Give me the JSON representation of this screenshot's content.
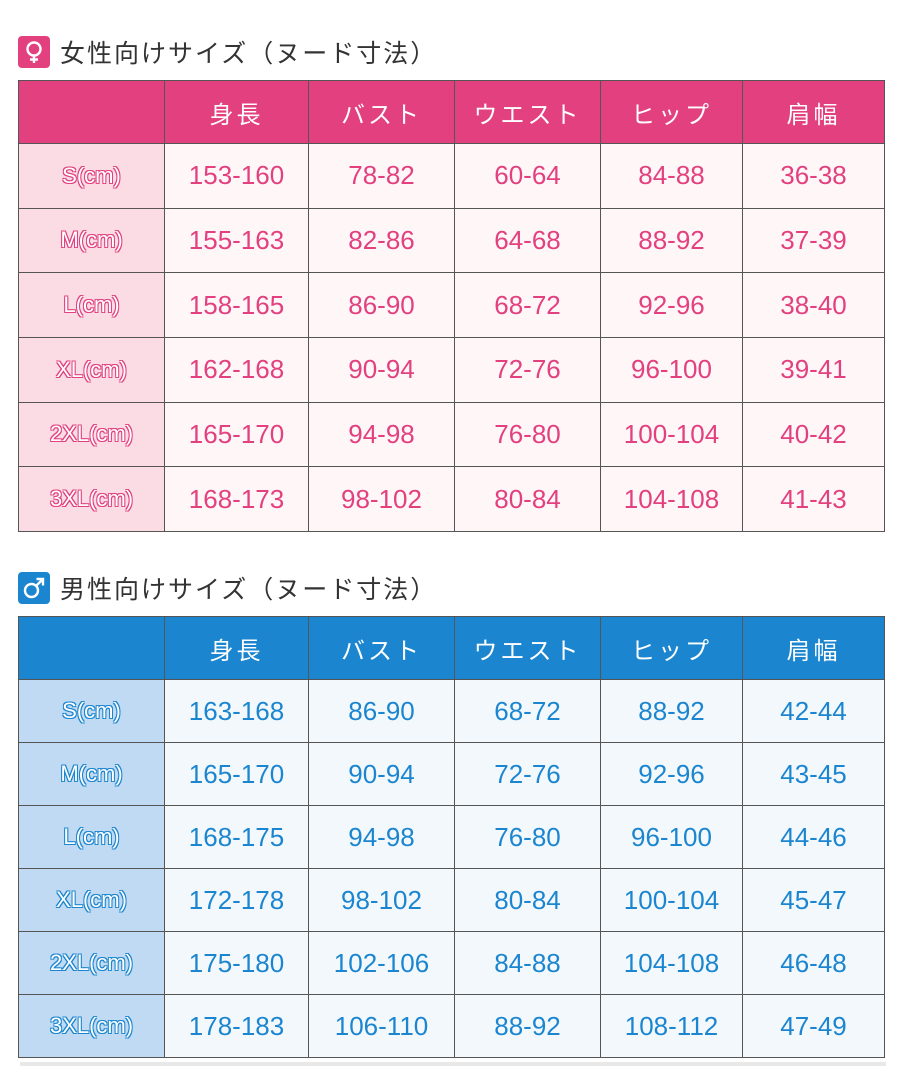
{
  "colors": {
    "women_accent": "#e2407e",
    "men_accent": "#1b86cf"
  },
  "women": {
    "icon": "female-symbol-icon",
    "title": "女性向けサイズ（ヌード寸法）",
    "headers": [
      "",
      "身長",
      "バスト",
      "ウエスト",
      "ヒップ",
      "肩幅"
    ],
    "rows": [
      {
        "size": "S(cm)",
        "values": [
          "153-160",
          "78-82",
          "60-64",
          "84-88",
          "36-38"
        ]
      },
      {
        "size": "M(cm)",
        "values": [
          "155-163",
          "82-86",
          "64-68",
          "88-92",
          "37-39"
        ]
      },
      {
        "size": "L(cm)",
        "values": [
          "158-165",
          "86-90",
          "68-72",
          "92-96",
          "38-40"
        ]
      },
      {
        "size": "XL(cm)",
        "values": [
          "162-168",
          "90-94",
          "72-76",
          "96-100",
          "39-41"
        ]
      },
      {
        "size": "2XL(cm)",
        "values": [
          "165-170",
          "94-98",
          "76-80",
          "100-104",
          "40-42"
        ]
      },
      {
        "size": "3XL(cm)",
        "values": [
          "168-173",
          "98-102",
          "80-84",
          "104-108",
          "41-43"
        ]
      }
    ]
  },
  "men": {
    "icon": "male-symbol-icon",
    "title": "男性向けサイズ（ヌード寸法）",
    "headers": [
      "",
      "身長",
      "バスト",
      "ウエスト",
      "ヒップ",
      "肩幅"
    ],
    "rows": [
      {
        "size": "S(cm)",
        "values": [
          "163-168",
          "86-90",
          "68-72",
          "88-92",
          "42-44"
        ]
      },
      {
        "size": "M(cm)",
        "values": [
          "165-170",
          "90-94",
          "72-76",
          "92-96",
          "43-45"
        ]
      },
      {
        "size": "L(cm)",
        "values": [
          "168-175",
          "94-98",
          "76-80",
          "96-100",
          "44-46"
        ]
      },
      {
        "size": "XL(cm)",
        "values": [
          "172-178",
          "98-102",
          "80-84",
          "100-104",
          "45-47"
        ]
      },
      {
        "size": "2XL(cm)",
        "values": [
          "175-180",
          "102-106",
          "84-88",
          "104-108",
          "46-48"
        ]
      },
      {
        "size": "3XL(cm)",
        "values": [
          "178-183",
          "106-110",
          "88-92",
          "108-112",
          "47-49"
        ]
      }
    ]
  }
}
